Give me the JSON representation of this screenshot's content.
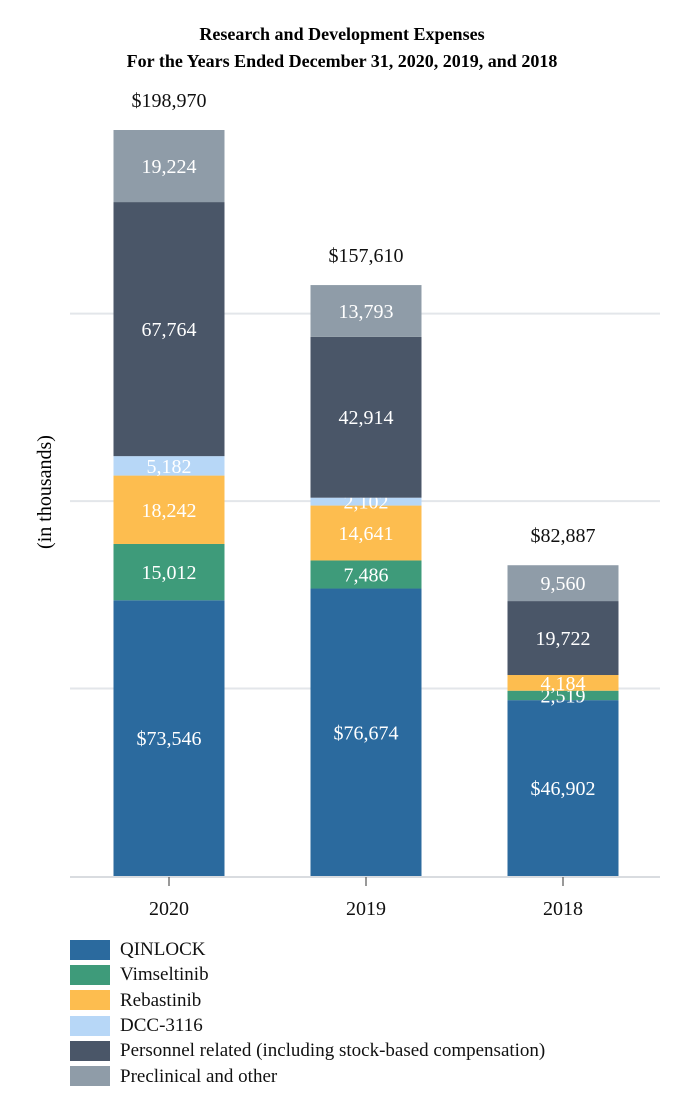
{
  "chart_data": {
    "type": "bar",
    "stacked": true,
    "title": "Research and Development Expenses",
    "subtitle": "For the Years Ended December 31, 2020, 2019, and 2018",
    "xlabel": "",
    "ylabel": "(in thousands)",
    "ylim": [
      0,
      200000
    ],
    "grid": true,
    "categories": [
      "2020",
      "2019",
      "2018"
    ],
    "totals": [
      198970,
      157610,
      82887
    ],
    "total_labels": [
      "$198,970",
      "$157,610",
      "$82,887"
    ],
    "series": [
      {
        "name": "QINLOCK",
        "color": "#2b6a9e",
        "values": [
          73546,
          76674,
          46902
        ],
        "labels": [
          "$73,546",
          "$76,674",
          "$46,902"
        ]
      },
      {
        "name": "Vimseltinib",
        "color": "#3e9b7a",
        "values": [
          15012,
          7486,
          2519
        ],
        "labels": [
          "15,012",
          "7,486",
          "2,519"
        ]
      },
      {
        "name": "Rebastinib",
        "color": "#fdbd4f",
        "values": [
          18242,
          14641,
          4184
        ],
        "labels": [
          "18,242",
          "14,641",
          "4,184"
        ]
      },
      {
        "name": "DCC-3116",
        "color": "#b7d7f7",
        "values": [
          5182,
          2102,
          0
        ],
        "labels": [
          "5,182",
          "2,102",
          ""
        ]
      },
      {
        "name": "Personnel related (including stock-based compensation)",
        "color": "#4a5668",
        "values": [
          67764,
          42914,
          19722
        ],
        "labels": [
          "67,764",
          "42,914",
          "19,722"
        ]
      },
      {
        "name": "Preclinical and other",
        "color": "#8f9ca8",
        "values": [
          19224,
          13793,
          9560
        ],
        "labels": [
          "19,224",
          "13,793",
          "9,560"
        ]
      }
    ],
    "legend_position": "bottom-left"
  }
}
